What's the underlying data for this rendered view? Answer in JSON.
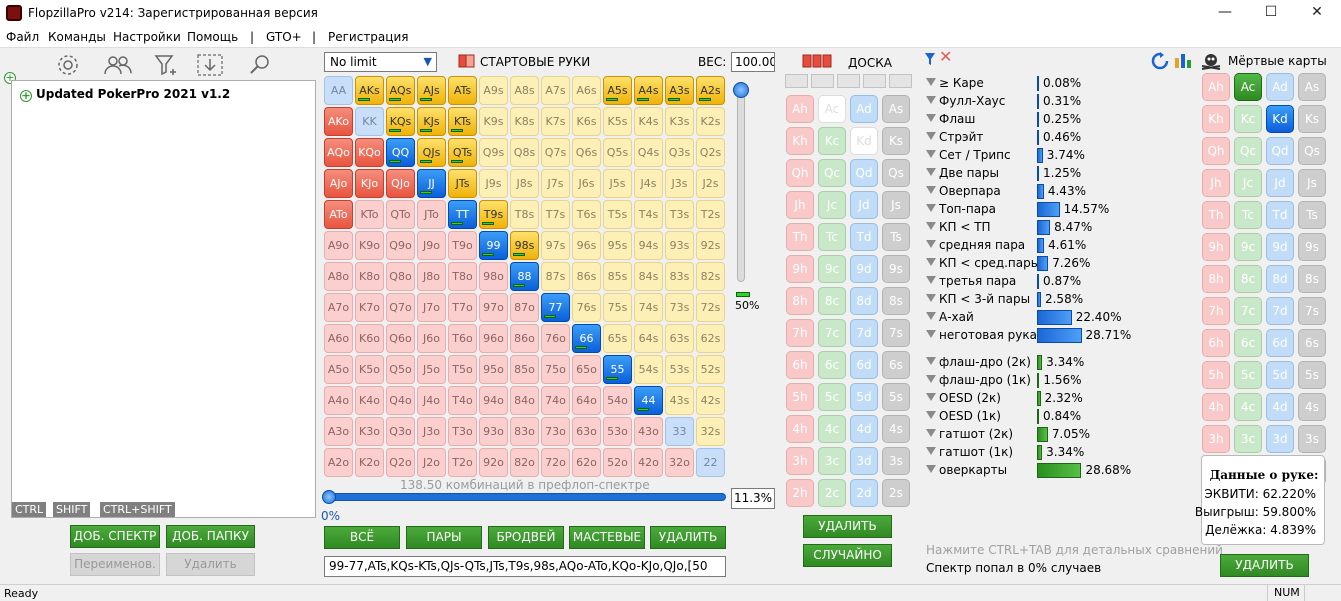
{
  "window": {
    "title": "FlopzillaPro v214: Зарегистрированная версия",
    "minimize": "—",
    "maximize": "☐",
    "close": "✕"
  },
  "menu": [
    "Файл",
    "Команды",
    "Настройки",
    "Помощь",
    "|",
    "GTO+",
    "|",
    "Регистрация"
  ],
  "toolbar_icons": [
    "gear-icon",
    "users-icon",
    "filter-add-icon",
    "download-icon",
    "search-icon"
  ],
  "tree": {
    "root_label": "Updated PokerPro 2021 v1.2"
  },
  "key_tags": [
    "CTRL",
    "SHIFT",
    "CTRL+SHIFT"
  ],
  "left_buttons": {
    "add_range": "ДОБ. СПЕКТР",
    "add_folder": "ДОБ. ПАПКУ",
    "rename": "Переименов.",
    "delete": "Удалить"
  },
  "range": {
    "game_type": "No limit",
    "section_title": "СТАРТОВЫЕ РУКИ",
    "weight_label": "ВЕС:",
    "weight_value": "100.00",
    "slider_percent": "50%",
    "combos_text": "138.50 комбинаций в префлоп-спектре",
    "range_percent": "11.3%",
    "start_percent": "0%",
    "buttons": [
      "ВСЁ",
      "ПАРЫ",
      "БРОДВЕЙ",
      "МАСТЕВЫЕ",
      "УДАЛИТЬ"
    ],
    "range_string": "99-77,ATs,KQs-KTs,QJs-QTs,JTs,T9s,98s,AQo-ATo,KQo-KJo,QJo,[50",
    "grid": [
      [
        "AA",
        "AKs",
        "AQs",
        "AJs",
        "ATs",
        "A9s",
        "A8s",
        "A7s",
        "A6s",
        "A5s",
        "A4s",
        "A3s",
        "A2s"
      ],
      [
        "AKo",
        "KK",
        "KQs",
        "KJs",
        "KTs",
        "K9s",
        "K8s",
        "K7s",
        "K6s",
        "K5s",
        "K4s",
        "K3s",
        "K2s"
      ],
      [
        "AQo",
        "KQo",
        "QQ",
        "QJs",
        "QTs",
        "Q9s",
        "Q8s",
        "Q7s",
        "Q6s",
        "Q5s",
        "Q4s",
        "Q3s",
        "Q2s"
      ],
      [
        "AJo",
        "KJo",
        "QJo",
        "JJ",
        "JTs",
        "J9s",
        "J8s",
        "J7s",
        "J6s",
        "J5s",
        "J4s",
        "J3s",
        "J2s"
      ],
      [
        "ATo",
        "KTo",
        "QTo",
        "JTo",
        "TT",
        "T9s",
        "T8s",
        "T7s",
        "T6s",
        "T5s",
        "T4s",
        "T3s",
        "T2s"
      ],
      [
        "A9o",
        "K9o",
        "Q9o",
        "J9o",
        "T9o",
        "99",
        "98s",
        "97s",
        "96s",
        "95s",
        "94s",
        "93s",
        "92s"
      ],
      [
        "A8o",
        "K8o",
        "Q8o",
        "J8o",
        "T8o",
        "98o",
        "88",
        "87s",
        "86s",
        "85s",
        "84s",
        "83s",
        "82s"
      ],
      [
        "A7o",
        "K7o",
        "Q7o",
        "J7o",
        "T7o",
        "97o",
        "87o",
        "77",
        "76s",
        "75s",
        "74s",
        "73s",
        "72s"
      ],
      [
        "A6o",
        "K6o",
        "Q6o",
        "J6o",
        "T6o",
        "96o",
        "86o",
        "76o",
        "66",
        "65s",
        "64s",
        "63s",
        "62s"
      ],
      [
        "A5o",
        "K5o",
        "Q5o",
        "J5o",
        "T5o",
        "95o",
        "85o",
        "75o",
        "65o",
        "55",
        "54s",
        "53s",
        "52s"
      ],
      [
        "A4o",
        "K4o",
        "Q4o",
        "J4o",
        "T4o",
        "94o",
        "84o",
        "74o",
        "64o",
        "54o",
        "44",
        "43s",
        "42s"
      ],
      [
        "A3o",
        "K3o",
        "Q3o",
        "J3o",
        "T3o",
        "93o",
        "83o",
        "73o",
        "63o",
        "53o",
        "43o",
        "33",
        "32s"
      ],
      [
        "A2o",
        "K2o",
        "Q2o",
        "J2o",
        "T2o",
        "92o",
        "82o",
        "72o",
        "62o",
        "52o",
        "42o",
        "32o",
        "22"
      ]
    ],
    "selected": [
      "AKs",
      "AQs",
      "AJs",
      "ATs",
      "A5s",
      "A4s",
      "A3s",
      "A2s",
      "KQs",
      "KJs",
      "KTs",
      "QJs",
      "QTs",
      "JTs",
      "T9s",
      "98s",
      "AKo",
      "AQo",
      "KQo",
      "QQ",
      "AJo",
      "KJo",
      "QJo",
      "JJ",
      "ATo",
      "TT",
      "99",
      "88",
      "77",
      "66",
      "55",
      "44"
    ],
    "bars": [
      "AKs",
      "AQs",
      "AJs",
      "A5s",
      "A4s",
      "A3s",
      "A2s",
      "KQs",
      "KJs",
      "KTs",
      "QQ",
      "QJs",
      "QTs",
      "JJ",
      "TT",
      "T9s",
      "99",
      "98s",
      "88",
      "77",
      "66",
      "55",
      "44"
    ]
  },
  "board": {
    "title": "ДОСКА",
    "ranks": [
      "A",
      "K",
      "Q",
      "J",
      "T",
      "9",
      "8",
      "7",
      "6",
      "5",
      "4",
      "3",
      "2"
    ],
    "suits": [
      "h",
      "c",
      "d",
      "s"
    ],
    "used": [
      "Ac",
      "Kd"
    ],
    "delete_button": "УДАЛИТЬ",
    "random_button": "СЛУЧАЙНО"
  },
  "stats": {
    "made": [
      {
        "label": "≥ Каре",
        "value": 0.08,
        "text": "0.08%"
      },
      {
        "label": "Фулл-Хаус",
        "value": 0.31,
        "text": "0.31%"
      },
      {
        "label": "Флаш",
        "value": 0.25,
        "text": "0.25%"
      },
      {
        "label": "Стрэйт",
        "value": 0.46,
        "text": "0.46%"
      },
      {
        "label": "Сет / Трипс",
        "value": 3.74,
        "text": "3.74%"
      },
      {
        "label": "Две пары",
        "value": 1.25,
        "text": "1.25%"
      },
      {
        "label": "Оверпара",
        "value": 4.43,
        "text": "4.43%"
      },
      {
        "label": "Топ-пара",
        "value": 14.57,
        "text": "14.57%"
      },
      {
        "label": "КП < ТП",
        "value": 8.47,
        "text": "8.47%"
      },
      {
        "label": "средняя пара",
        "value": 4.61,
        "text": "4.61%"
      },
      {
        "label": "КП < сред.пары",
        "value": 7.26,
        "text": "7.26%"
      },
      {
        "label": "третья пара",
        "value": 0.87,
        "text": "0.87%"
      },
      {
        "label": "КП < 3-й пары",
        "value": 2.58,
        "text": "2.58%"
      },
      {
        "label": "А-хай",
        "value": 22.4,
        "text": "22.40%"
      },
      {
        "label": "неготовая рука",
        "value": 28.71,
        "text": "28.71%"
      }
    ],
    "draws": [
      {
        "label": "флаш-дро (2к)",
        "value": 3.34,
        "text": "3.34%"
      },
      {
        "label": "флаш-дро (1к)",
        "value": 1.56,
        "text": "1.56%"
      },
      {
        "label": "OESD (2к)",
        "value": 2.32,
        "text": "2.32%"
      },
      {
        "label": "OESD (1к)",
        "value": 0.84,
        "text": "0.84%"
      },
      {
        "label": "гатшот (2к)",
        "value": 7.05,
        "text": "7.05%"
      },
      {
        "label": "гатшот (1к)",
        "value": 3.34,
        "text": "3.34%"
      },
      {
        "label": "оверкарты",
        "value": 28.68,
        "text": "28.68%"
      }
    ],
    "hint": "Нажмите CTRL+TAB для детальных сравнений",
    "hit_text": "Спектр попал в 0% случаев"
  },
  "dead": {
    "title": "Мёртвые карты",
    "delete_button": "УДАЛИТЬ"
  },
  "hand_info": {
    "title": "Данные о руке:",
    "equity": "ЭКВИТИ: 62.220%",
    "win": "Выигрыш: 59.800%",
    "tie": "Делёжка: 4.839%"
  },
  "status": {
    "left": "Ready",
    "right": "NUM"
  }
}
